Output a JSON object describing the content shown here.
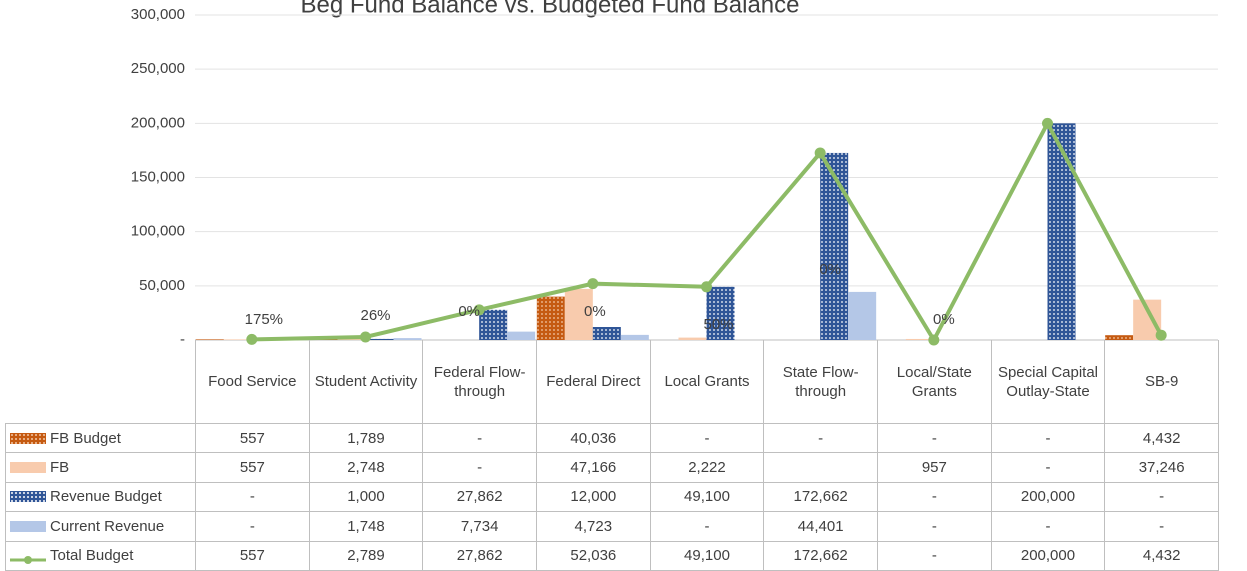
{
  "chart_data": {
    "type": "bar",
    "title": "Beg Fund Balance vs. Budgeted Fund Balance",
    "categories": [
      "Food Service",
      "Student Activity",
      "Federal Flow-through",
      "Federal Direct",
      "Local Grants",
      "State Flow-through",
      "Local/State Grants",
      "Special Capital Outlay-State",
      "SB-9"
    ],
    "ylim": [
      0,
      300000
    ],
    "yticks": [
      {
        "value": 0,
        "label": "-"
      },
      {
        "value": 50000,
        "label": "50,000"
      },
      {
        "value": 100000,
        "label": "100,000"
      },
      {
        "value": 150000,
        "label": "150,000"
      },
      {
        "value": 200000,
        "label": "200,000"
      },
      {
        "value": 250000,
        "label": "250,000"
      },
      {
        "value": 300000,
        "label": "300,000"
      }
    ],
    "grid": true,
    "percent_labels": [
      "175%",
      "26%",
      "0%",
      "0%",
      "50%",
      "0%",
      "0%",
      null,
      null
    ],
    "series": [
      {
        "name": "FB Budget",
        "type": "bar",
        "color": "#c55a11",
        "pattern": "dots",
        "values": [
          557,
          1789,
          0,
          40036,
          0,
          0,
          0,
          0,
          4432
        ],
        "value_labels": [
          "557",
          "1,789",
          "-",
          "40,036",
          "-",
          "-",
          "-",
          "-",
          "4,432"
        ]
      },
      {
        "name": "FB",
        "type": "bar",
        "color": "#f8cbad",
        "values": [
          557,
          2748,
          0,
          47166,
          2222,
          null,
          957,
          0,
          37246
        ],
        "value_labels": [
          "557",
          "2,748",
          "-",
          "47,166",
          "2,222",
          null,
          "957",
          "-",
          "37,246"
        ]
      },
      {
        "name": "Revenue Budget",
        "type": "bar",
        "color": "#2f5597",
        "pattern": "dots",
        "values": [
          0,
          1000,
          27862,
          12000,
          49100,
          172662,
          0,
          200000,
          0
        ],
        "value_labels": [
          "-",
          "1,000",
          "27,862",
          "12,000",
          "49,100",
          "172,662",
          "-",
          "200,000",
          "-"
        ]
      },
      {
        "name": "Current Revenue",
        "type": "bar",
        "color": "#b4c7e7",
        "values": [
          0,
          1748,
          7734,
          4723,
          0,
          44401,
          0,
          0,
          0
        ],
        "value_labels": [
          "-",
          "1,748",
          "7,734",
          "4,723",
          "-",
          "44,401",
          "-",
          "-",
          "-"
        ]
      },
      {
        "name": "Total Budget",
        "type": "line",
        "color": "#8dbb66",
        "values": [
          557,
          2789,
          27862,
          52036,
          49100,
          172662,
          0,
          200000,
          4432
        ],
        "value_labels": [
          "557",
          "2,789",
          "27,862",
          "52,036",
          "49,100",
          "172,662",
          "-",
          "200,000",
          "4,432"
        ]
      }
    ]
  }
}
